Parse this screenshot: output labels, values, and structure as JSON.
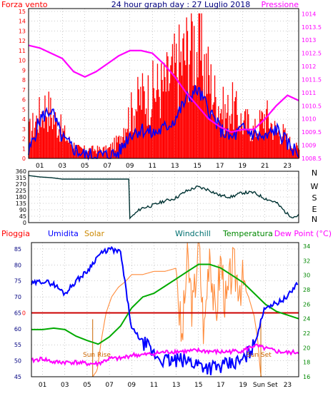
{
  "header": {
    "title": "24 hour graph day : 27 Luglio 2018",
    "left_label": "Forza vento",
    "right_label": "Pressione"
  },
  "legend": {
    "pioggia": "Pioggia",
    "umidita": "Umidita",
    "solar": "Solar",
    "windchill": "Windchill",
    "temperatura": "Temperatura",
    "dewpoint": "Dew Point (°C)"
  },
  "annotations": {
    "sunrise": "Sun Rise",
    "sunset": "Sun Set"
  },
  "colors": {
    "wind_bar": "#ff0000",
    "wind_line": "#0000ff",
    "pressure": "#ff00ff",
    "direction": "#003333",
    "humidity": "#0000ff",
    "solar": "#ff8c3c",
    "temperature": "#00aa00",
    "windchill": "#007070",
    "dewpoint": "#ff00ff",
    "rain": "#cc0000"
  },
  "chart_data": [
    {
      "type": "bar",
      "name": "wind",
      "x_ticks": [
        "01",
        "03",
        "05",
        "07",
        "09",
        "11",
        "13",
        "15",
        "17",
        "19",
        "21",
        "23"
      ],
      "y_left_ticks": [
        "0",
        "1",
        "2",
        "3",
        "4",
        "5",
        "6",
        "7",
        "8",
        "9",
        "10",
        "11",
        "12",
        "13",
        "14",
        "15"
      ],
      "y_right_ticks": [
        "1008.5",
        "1009",
        "1009.5",
        "1010",
        "1010.5",
        "1011",
        "1011.5",
        "1012",
        "1012.5",
        "1013",
        "1013.5",
        "1014"
      ],
      "ylim_left": [
        0,
        15
      ],
      "ylim_right": [
        1008.5,
        1014.2
      ],
      "gust_hours": [
        0,
        0.5,
        1,
        1.5,
        2,
        2.5,
        3,
        3.5,
        4,
        4.5,
        5,
        5.5,
        6,
        6.5,
        7,
        7.5,
        8,
        8.5,
        9,
        9.5,
        10,
        10.5,
        11,
        11.5,
        12,
        12.5,
        13,
        13.5,
        14,
        14.5,
        15,
        15.5,
        16,
        16.5,
        17,
        17.5,
        18,
        18.5,
        19,
        19.5,
        20,
        20.5,
        21,
        21.5,
        22,
        22.5,
        23,
        23.5,
        24
      ],
      "gust_values": [
        3,
        4,
        5,
        6,
        5,
        4,
        3,
        2,
        1.5,
        1,
        1,
        1,
        1,
        1,
        1,
        1.5,
        2,
        4,
        5,
        6,
        7,
        7,
        7.5,
        8,
        8,
        9,
        10,
        11,
        12,
        14,
        12,
        11,
        9,
        7,
        6,
        5,
        6,
        5,
        4,
        4,
        3,
        4,
        5,
        4,
        3,
        3,
        2,
        1.5,
        1
      ],
      "avg_hours": [
        0,
        1,
        2,
        3,
        4,
        5,
        6,
        7,
        8,
        9,
        10,
        11,
        12,
        13,
        14,
        15,
        16,
        17,
        18,
        19,
        20,
        21,
        22,
        23,
        24
      ],
      "avg_values": [
        0.5,
        4,
        5,
        2,
        1,
        0.3,
        0.3,
        0.3,
        0.5,
        2.5,
        3,
        2.5,
        3,
        4,
        6,
        7,
        5,
        3,
        2,
        3,
        2.5,
        2,
        3,
        1.5,
        0.5
      ],
      "pressure_hours": [
        0,
        1,
        2,
        3,
        4,
        5,
        6,
        7,
        8,
        9,
        10,
        11,
        12,
        13,
        14,
        15,
        16,
        17,
        18,
        19,
        20,
        21,
        22,
        23,
        24
      ],
      "pressure_values": [
        1012.8,
        1012.7,
        1012.5,
        1012.3,
        1011.8,
        1011.6,
        1011.8,
        1012.1,
        1012.4,
        1012.6,
        1012.6,
        1012.5,
        1012.1,
        1011.6,
        1011.0,
        1010.5,
        1010.0,
        1009.7,
        1009.5,
        1009.6,
        1009.6,
        1010.0,
        1010.5,
        1010.9,
        1010.7
      ]
    },
    {
      "type": "line",
      "name": "direction",
      "y_ticks": [
        "0",
        "45",
        "90",
        "135",
        "180",
        "225",
        "270",
        "315",
        "360"
      ],
      "compass": [
        "N",
        "W",
        "S",
        "E",
        "N"
      ],
      "ylim": [
        0,
        360
      ],
      "hours": [
        0,
        1,
        2,
        3,
        4,
        5,
        6,
        7,
        8,
        8.98,
        9,
        10,
        11,
        12,
        13,
        14,
        15,
        16,
        17,
        18,
        19,
        20,
        21,
        22,
        23,
        23.5,
        24
      ],
      "values": [
        330,
        320,
        315,
        305,
        305,
        305,
        305,
        305,
        305,
        305,
        30,
        100,
        120,
        150,
        170,
        220,
        250,
        230,
        190,
        180,
        210,
        210,
        170,
        140,
        60,
        40,
        50
      ]
    },
    {
      "type": "line",
      "name": "weather",
      "x_ticks": [
        "01",
        "03",
        "05",
        "07",
        "09",
        "11",
        "13",
        "15",
        "17",
        "19",
        "Sun Set",
        "23"
      ],
      "y_left_ticks": [
        "45",
        "50",
        "55",
        "60",
        "65",
        "70",
        "75",
        "80",
        "85"
      ],
      "y_right_ticks": [
        "16",
        "18",
        "20",
        "22",
        "24",
        "26",
        "28",
        "30",
        "32",
        "34"
      ],
      "rain_label": "0",
      "ylim_left": [
        45,
        87
      ],
      "ylim_right": [
        16,
        34.5
      ],
      "humidity_hours": [
        0,
        1,
        2,
        3,
        4,
        5,
        6,
        7,
        8,
        9,
        10,
        11,
        12,
        13,
        14,
        15,
        16,
        17,
        18,
        19,
        20,
        21,
        22,
        23,
        24
      ],
      "humidity_values": [
        74,
        75,
        74,
        71,
        75,
        78,
        83,
        85,
        84,
        60,
        56,
        52,
        50,
        50,
        50,
        49,
        48,
        48,
        49,
        50,
        55,
        67,
        68,
        70,
        75
      ],
      "temperature_hours": [
        0,
        1,
        2,
        3,
        4,
        5,
        6,
        7,
        8,
        9,
        10,
        11,
        12,
        13,
        14,
        15,
        16,
        17,
        18,
        19,
        20,
        21,
        22,
        23,
        24
      ],
      "temperature_values": [
        22.5,
        22.5,
        22.7,
        22.5,
        21.6,
        21,
        20.5,
        21.5,
        23,
        25.5,
        27,
        27.5,
        28.5,
        29.5,
        30.5,
        31.5,
        31.5,
        31,
        30,
        29,
        27.5,
        26,
        25,
        24.5,
        24
      ],
      "dewpoint_hours": [
        0,
        1,
        2,
        3,
        4,
        5,
        6,
        7,
        8,
        9,
        10,
        11,
        12,
        13,
        14,
        15,
        16,
        17,
        18,
        19,
        20,
        21,
        22,
        23,
        24
      ],
      "dewpoint_values": [
        18.2,
        18.5,
        18,
        18,
        18,
        17.8,
        17.8,
        18.5,
        18.5,
        19,
        19,
        19.2,
        19.4,
        19.5,
        19.5,
        19.6,
        19.5,
        19.4,
        19.5,
        19.6,
        20.3,
        19.9,
        19.5,
        19.3,
        19.4
      ],
      "solar_hours": [
        0,
        5.5,
        5.9,
        6.3,
        6.7,
        7.2,
        7.8,
        8.5,
        9,
        10,
        11,
        12,
        13,
        13.5,
        14,
        14.5,
        15,
        15.5,
        16,
        16.5,
        17,
        17.5,
        18,
        18.5,
        19,
        19.5,
        20,
        20.3,
        20.6,
        24
      ],
      "solar_values": [
        45,
        45,
        47,
        57,
        65,
        70,
        73,
        75,
        77,
        77,
        78,
        78,
        79,
        55,
        82,
        65,
        88,
        58,
        87,
        62,
        82,
        66,
        79,
        76,
        74,
        70,
        64,
        57,
        45,
        45
      ],
      "sunrise_hour": 5.5,
      "sunset_hour": 20.6
    }
  ]
}
